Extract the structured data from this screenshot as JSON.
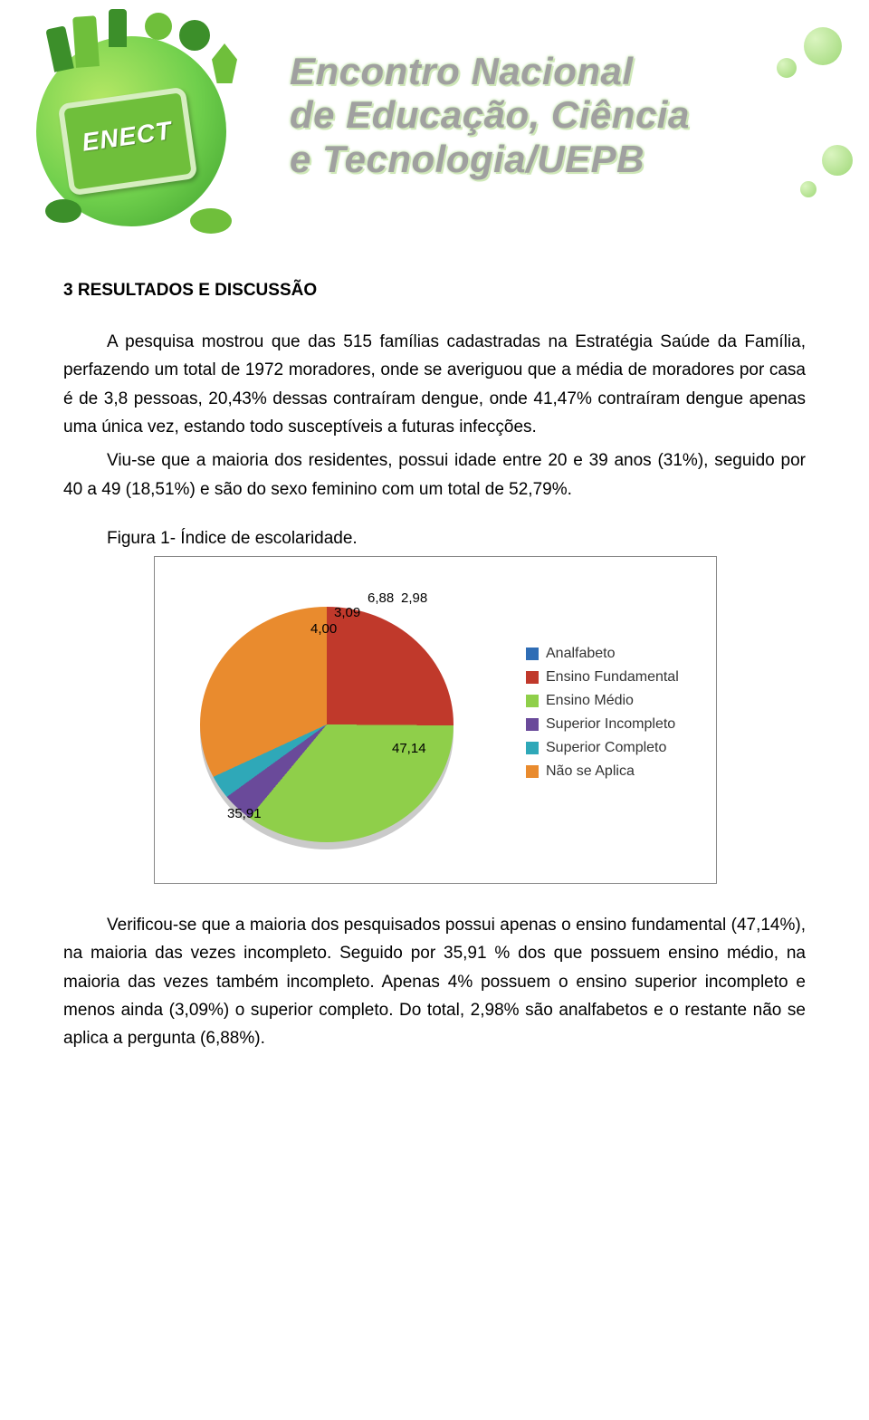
{
  "banner": {
    "badge_text": "ENECT",
    "title_line1": "Encontro Nacional",
    "title_line2": "de Educação, Ciência",
    "title_line3": "e Tecnologia/UEPB"
  },
  "section_heading": "3 RESULTADOS E DISCUSSÃO",
  "paragraphs": {
    "p1": "A pesquisa mostrou que das 515 famílias cadastradas na Estratégia Saúde da Família, perfazendo um total de 1972 moradores, onde se averiguou que a média de moradores por casa é de 3,8 pessoas, 20,43% dessas contraíram dengue, onde 41,47% contraíram dengue apenas uma única vez, estando todo susceptíveis a futuras infecções.",
    "p2": "Viu-se que a maioria dos residentes, possui idade entre 20 e 39 anos (31%), seguido por 40 a 49 (18,51%) e são do sexo feminino com um total de 52,79%.",
    "fig_caption": "Figura 1- Índice de escolaridade.",
    "p3": "Verificou-se que a maioria dos pesquisados possui apenas o ensino fundamental (47,14%), na maioria das vezes incompleto. Seguido por 35,91 % dos que possuem ensino médio, na maioria das vezes também incompleto. Apenas 4% possuem o ensino superior incompleto e menos ainda (3,09%) o superior completo. Do total, 2,98% são analfabetos e o restante não se aplica a pergunta (6,88%)."
  },
  "chart": {
    "type": "pie",
    "slices": [
      {
        "label": "Analfabeto",
        "value": 2.98,
        "color": "#2f6db5"
      },
      {
        "label": "Ensino Fundamental",
        "value": 47.14,
        "color": "#c0392b"
      },
      {
        "label": "Ensino Médio",
        "value": 35.91,
        "color": "#8fcf4a"
      },
      {
        "label": "Superior Incompleto",
        "value": 4.0,
        "color": "#6a4a9a"
      },
      {
        "label": "Superior Completo",
        "value": 3.09,
        "color": "#2fa8b8"
      },
      {
        "label": "Não se Aplica",
        "value": 6.88,
        "color": "#e98b2e"
      }
    ],
    "value_labels": {
      "l_analfabeto": "2,98",
      "l_fund": "47,14",
      "l_medio": "35,91",
      "l_sup_inc": "4,00",
      "l_sup_comp": "3,09",
      "l_nao": "6,88"
    },
    "legend_title_fontsize": 16,
    "start_angle_deg": -90,
    "background_color": "#ffffff",
    "border_color": "#888888"
  }
}
